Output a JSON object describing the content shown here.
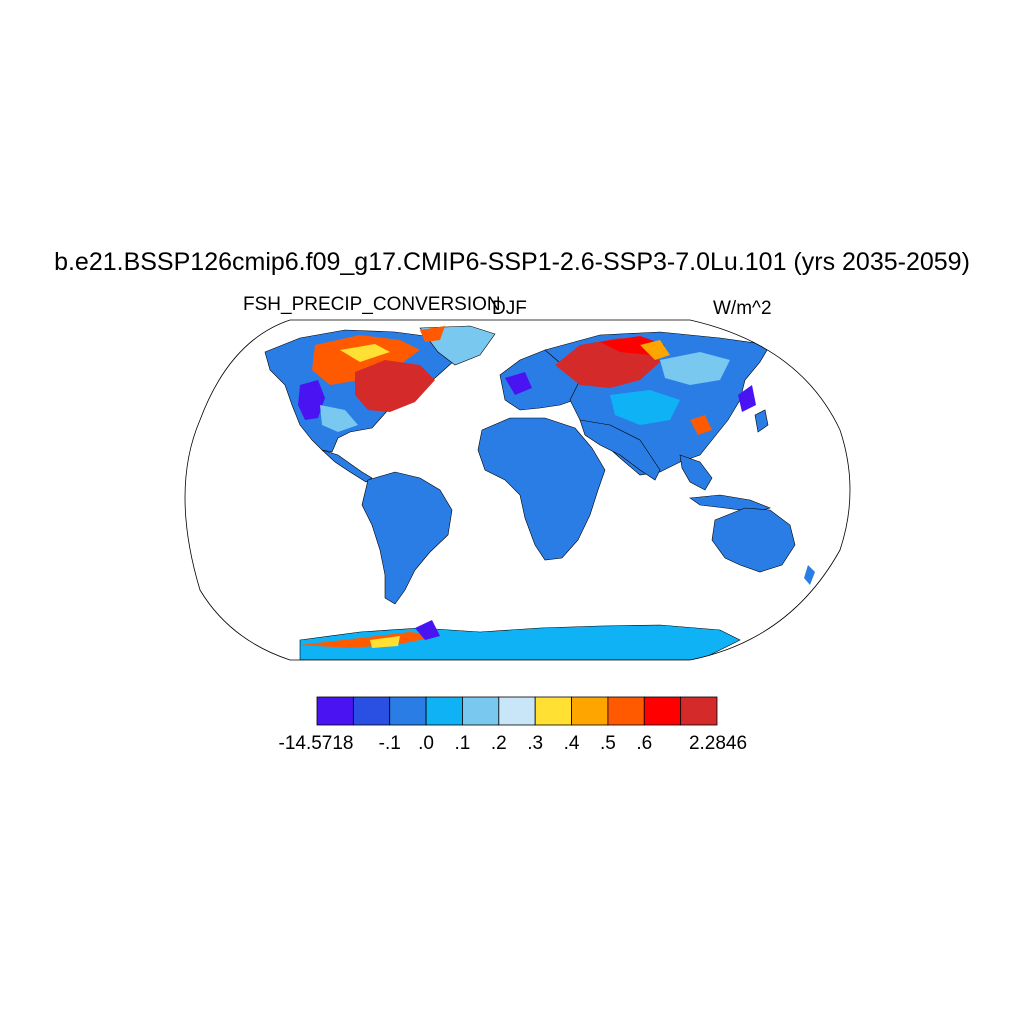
{
  "title": "b.e21.BSSP126cmip6.f09_g17.CMIP6-SSP1-2.6-SSP3-7.0Lu.101 (yrs 2035-2059)",
  "variable": "FSH_PRECIP_CONVERSION",
  "season": "DJF",
  "units": "W/m^2",
  "colorbar": {
    "colors": [
      "#4a14f2",
      "#2a4fe3",
      "#2b7de6",
      "#0fb2f5",
      "#79c8ef",
      "#c8e6f7",
      "#ffe033",
      "#ffa500",
      "#ff5a00",
      "#ff0000",
      "#d42a2a"
    ],
    "labels": [
      "-14.5718",
      "-.1",
      ".0",
      ".1",
      ".2",
      ".3",
      ".4",
      ".5",
      ".6",
      "2.2846"
    ]
  },
  "map": {
    "ocean_color": "#ffffff",
    "land_default_color": "#2b7de6",
    "antarctica_color": "#0fb2f5"
  }
}
